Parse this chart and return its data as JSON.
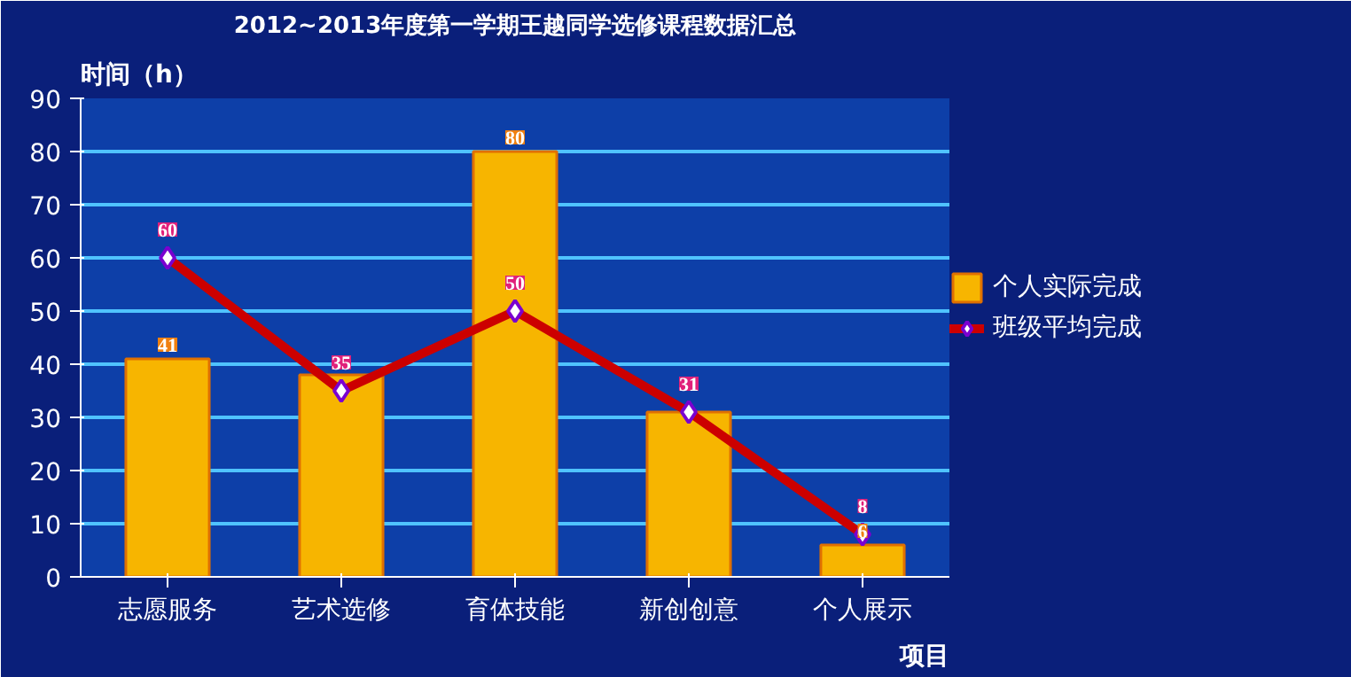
{
  "chart_data": {
    "type": "bar",
    "title": "2012~2013年度第一学期王越同学选修课程数据汇总",
    "ylabel": "时间（h）",
    "xlabel": "项目",
    "categories": [
      "志愿服务",
      "艺术选修",
      "育体技能",
      "新创创意",
      "个人展示"
    ],
    "series": [
      {
        "name": "个人实际完成",
        "color": "#f7b500",
        "values": [
          41,
          38,
          80,
          31,
          6
        ],
        "value_labels": [
          "41",
          null,
          "80",
          null,
          "6"
        ]
      },
      {
        "name": "班级平均完成",
        "type": "line",
        "color": "#cc0000",
        "marker": "diamond",
        "values": [
          60,
          35,
          50,
          31,
          8
        ],
        "value_labels": [
          "60",
          "35",
          "50",
          "31",
          "8"
        ]
      }
    ],
    "ylim": [
      0,
      90
    ],
    "yticks": [
      0,
      10,
      20,
      30,
      40,
      50,
      60,
      70,
      80,
      90
    ],
    "grid": "y",
    "legend": "right"
  }
}
